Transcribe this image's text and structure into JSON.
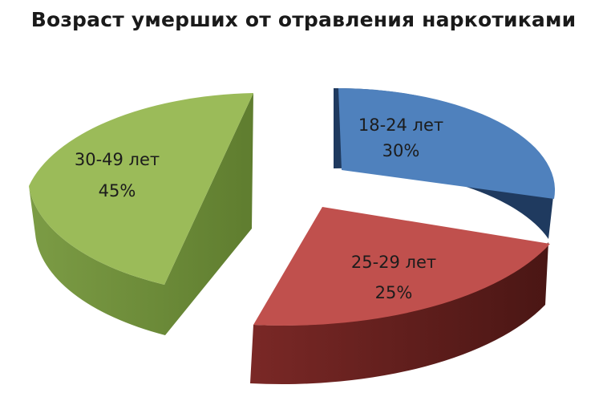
{
  "chart_data": {
    "type": "pie",
    "title": "Возраст умерших от отравления наркотиками",
    "legend": "none",
    "slices": [
      {
        "label": "18-24 лет",
        "value": 30,
        "value_label": "30%",
        "color": "#4f81bd",
        "side_color": "#1f3a5f"
      },
      {
        "label": "25-29 лет",
        "value": 25,
        "value_label": "25%",
        "color": "#c0504d",
        "side_color": "#5e1f1d"
      },
      {
        "label": "30-49 лет",
        "value": 45,
        "value_label": "45%",
        "color": "#9bbb59",
        "side_color": "#6a8a35"
      }
    ]
  }
}
